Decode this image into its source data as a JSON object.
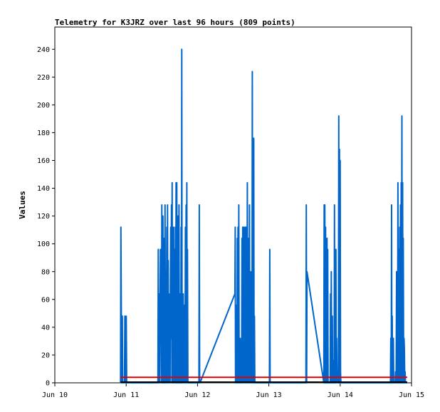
{
  "chart_data": {
    "type": "line",
    "title": "Telemetry for K3JRZ over last 96 hours (809 points)",
    "xlabel": "",
    "ylabel": "Values",
    "x_tick_labels": [
      "Jun 10",
      "Jun 11",
      "Jun 12",
      "Jun 13",
      "Jun 14",
      "Jun 15"
    ],
    "y_ticks": [
      0,
      20,
      40,
      60,
      80,
      100,
      120,
      140,
      160,
      180,
      200,
      220,
      240
    ],
    "xlim": [
      "Jun 10",
      "Jun 15"
    ],
    "ylim": [
      0,
      256
    ],
    "grid": false,
    "legend": "none",
    "series": [
      {
        "color": "#0066cc",
        "x": [
          "Jun 10 22:06",
          "Jun 10 22:14",
          "Jun 10 22:29",
          "Jun 10 22:36",
          "Jun 10 22:43",
          "Jun 10 22:50",
          "Jun 10 22:58",
          "Jun 10 23:05",
          "Jun 10 23:26",
          "Jun 10 23:34",
          "Jun 10 23:48",
          "Jun 10 23:55",
          "Jun 11 00:02",
          "Jun 11 00:10",
          "Jun 11 00:17",
          "Jun 11 00:24",
          "Jun 11 00:31",
          "Jun 11 00:38",
          "Jun 11 10:34",
          "Jun 11 10:41",
          "Jun 11 10:48",
          "Jun 11 10:55",
          "Jun 11 11:02",
          "Jun 11 11:10",
          "Jun 11 11:17",
          "Jun 11 11:24",
          "Jun 11 11:31",
          "Jun 11 11:38",
          "Jun 11 11:46",
          "Jun 11 11:53",
          "Jun 11 12:00",
          "Jun 11 12:07",
          "Jun 11 12:14",
          "Jun 11 12:22",
          "Jun 11 12:29",
          "Jun 11 12:36",
          "Jun 11 12:43",
          "Jun 11 12:50",
          "Jun 11 12:58",
          "Jun 11 13:05",
          "Jun 11 13:12",
          "Jun 11 13:19",
          "Jun 11 13:26",
          "Jun 11 13:34",
          "Jun 11 13:41",
          "Jun 11 13:48",
          "Jun 11 13:55",
          "Jun 11 14:02",
          "Jun 11 14:10",
          "Jun 11 14:17",
          "Jun 11 14:24",
          "Jun 11 14:31",
          "Jun 11 14:38",
          "Jun 11 14:46",
          "Jun 11 14:53",
          "Jun 11 15:00",
          "Jun 11 15:07",
          "Jun 11 15:14",
          "Jun 11 15:22",
          "Jun 11 15:29",
          "Jun 11 15:36",
          "Jun 11 15:43",
          "Jun 11 15:50",
          "Jun 11 15:58",
          "Jun 11 16:05",
          "Jun 11 16:12",
          "Jun 11 16:19",
          "Jun 11 16:26",
          "Jun 11 16:34",
          "Jun 11 16:41",
          "Jun 11 16:48",
          "Jun 11 16:55",
          "Jun 11 17:02",
          "Jun 11 17:10",
          "Jun 11 17:17",
          "Jun 11 17:24",
          "Jun 11 17:31",
          "Jun 11 17:38",
          "Jun 11 17:46",
          "Jun 11 17:53",
          "Jun 11 18:00",
          "Jun 11 18:07",
          "Jun 11 18:14",
          "Jun 11 18:22",
          "Jun 11 18:29",
          "Jun 11 18:36",
          "Jun 11 18:43",
          "Jun 11 18:50",
          "Jun 11 18:58",
          "Jun 11 19:05",
          "Jun 11 19:12",
          "Jun 11 19:19",
          "Jun 11 19:26",
          "Jun 11 19:34",
          "Jun 11 19:41",
          "Jun 11 19:48",
          "Jun 11 19:55",
          "Jun 11 20:02",
          "Jun 11 20:10",
          "Jun 11 20:17",
          "Jun 11 20:24",
          "Jun 11 20:31",
          "Jun 11 20:38",
          "Jun 11 20:46",
          "Jun 11 20:53",
          "Jun 11 21:00",
          "Jun 11 21:07",
          "Jun 11 21:14",
          "Jun 11 21:22",
          "Jun 11 21:29",
          "Jun 11 21:36",
          "Jun 11 21:43",
          "Jun 11 21:50",
          "Jun 11 21:58",
          "Jun 11 22:05",
          "Jun 11 22:12",
          "Jun 11 22:19",
          "Jun 11 22:26",
          "Jun 11 22:34",
          "Jun 11 22:41",
          "Jun 11 22:48",
          "Jun 11 22:55",
          "Jun 11 23:02",
          "Jun 11 23:10",
          "Jun 11 23:17",
          "Jun 11 23:24",
          "Jun 11 23:31",
          "Jun 11 23:38",
          "Jun 11 23:46",
          "Jun 11 23:53",
          "Jun 12 00:00",
          "Jun 12 00:07",
          "Jun 12 00:14",
          "Jun 12 00:22",
          "Jun 12 00:29",
          "Jun 12 00:36",
          "Jun 12 00:43",
          "Jun 12 00:50",
          "Jun 12 12:34",
          "Jun 12 12:41",
          "Jun 12 12:48",
          "Jun 12 12:55",
          "Jun 12 13:02",
          "Jun 12 13:10",
          "Jun 12 13:17",
          "Jun 12 13:24",
          "Jun 12 13:31",
          "Jun 12 13:38",
          "Jun 12 13:46",
          "Jun 12 13:53",
          "Jun 12 14:00",
          "Jun 12 14:07",
          "Jun 12 14:14",
          "Jun 12 14:22",
          "Jun 12 14:29",
          "Jun 12 14:36",
          "Jun 12 14:43",
          "Jun 12 14:50",
          "Jun 12 14:58",
          "Jun 12 15:05",
          "Jun 12 15:12",
          "Jun 12 15:19",
          "Jun 12 15:26",
          "Jun 12 15:34",
          "Jun 12 15:41",
          "Jun 12 15:48",
          "Jun 12 15:55",
          "Jun 12 16:02",
          "Jun 12 16:10",
          "Jun 12 16:17",
          "Jun 12 16:24",
          "Jun 12 16:31",
          "Jun 12 16:38",
          "Jun 12 16:46",
          "Jun 12 16:53",
          "Jun 12 17:00",
          "Jun 12 17:07",
          "Jun 12 17:14",
          "Jun 12 17:22",
          "Jun 12 17:29",
          "Jun 12 17:36",
          "Jun 12 17:43",
          "Jun 12 17:50",
          "Jun 12 17:58",
          "Jun 12 18:05",
          "Jun 12 18:12",
          "Jun 12 18:19",
          "Jun 12 18:26",
          "Jun 12 18:34",
          "Jun 12 18:41",
          "Jun 12 18:48",
          "Jun 12 18:55",
          "Jun 12 19:02",
          "Jun 12 19:10",
          "Jun 12 19:17",
          "Jun 12 19:24",
          "Jun 12 19:31",
          "Jun 12 19:38",
          "Jun 12 19:46",
          "Jun 12 19:53",
          "Jun 12 20:00",
          "Jun 12 20:07",
          "Jun 12 20:14",
          "Jun 12 20:22",
          "Jun 12 20:29",
          "Jun 12 20:36",
          "Jun 12 20:43",
          "Jun 12 20:50",
          "Jun 12 20:58",
          "Jun 12 21:05",
          "Jun 12 21:12",
          "Jun 12 21:19",
          "Jun 12 21:26",
          "Jun 12 21:34",
          "Jun 12 21:41",
          "Jun 12 21:48",
          "Jun 12 21:55",
          "Jun 12 22:02",
          "Jun 12 22:10",
          "Jun 12 22:17",
          "Jun 12 22:24",
          "Jun 12 22:31",
          "Jun 12 22:38",
          "Jun 12 22:46",
          "Jun 12 22:53",
          "Jun 12 23:00",
          "Jun 12 23:07",
          "Jun 12 23:14",
          "Jun 12 23:22",
          "Jun 12 23:29",
          "Jun 12 23:36",
          "Jun 12 23:43",
          "Jun 12 23:50",
          "Jun 12 23:58",
          "Jun 13 00:05",
          "Jun 13 00:12",
          "Jun 13 00:19",
          "Jun 13 00:26",
          "Jun 13 00:34",
          "Jun 13 11:02",
          "Jun 13 11:10",
          "Jun 13 11:17",
          "Jun 13 11:24",
          "Jun 13 11:31",
          "Jun 13 11:38",
          "Jun 13 11:46",
          "Jun 13 11:53",
          "Jun 13 12:00",
          "Jun 13 12:07",
          "Jun 13 12:14",
          "Jun 13 12:22",
          "Jun 13 12:29",
          "Jun 13 12:36",
          "Jun 13 12:43",
          "Jun 13 12:50",
          "Jun 13 18:29",
          "Jun 13 18:36",
          "Jun 13 18:43",
          "Jun 13 18:50",
          "Jun 13 18:58",
          "Jun 13 19:05",
          "Jun 13 19:12",
          "Jun 13 19:19",
          "Jun 13 19:26",
          "Jun 13 19:34",
          "Jun 13 19:41",
          "Jun 13 19:48",
          "Jun 13 19:55",
          "Jun 13 20:02",
          "Jun 13 20:10",
          "Jun 13 20:17",
          "Jun 13 20:24",
          "Jun 13 20:31",
          "Jun 13 20:38",
          "Jun 13 20:46",
          "Jun 13 20:53",
          "Jun 13 21:00",
          "Jun 13 21:07",
          "Jun 13 21:14",
          "Jun 13 21:22",
          "Jun 13 21:29",
          "Jun 13 21:36",
          "Jun 13 21:43",
          "Jun 13 21:50",
          "Jun 13 21:58",
          "Jun 13 22:05",
          "Jun 13 22:12",
          "Jun 13 22:19",
          "Jun 13 22:26",
          "Jun 13 22:34",
          "Jun 13 22:41",
          "Jun 13 22:48",
          "Jun 13 22:55",
          "Jun 13 23:02",
          "Jun 13 23:10",
          "Jun 13 23:17",
          "Jun 13 23:24",
          "Jun 13 23:31",
          "Jun 13 23:38",
          "Jun 13 23:46",
          "Jun 13 23:53",
          "Jun 14 00:00",
          "Jun 14 00:07",
          "Jun 14 00:14",
          "Jun 14 00:22",
          "Jun 14 11:38",
          "Jun 14 11:46",
          "Jun 14 11:53",
          "Jun 14 12:00",
          "Jun 14 12:07",
          "Jun 14 12:14",
          "Jun 14 12:22",
          "Jun 14 12:29",
          "Jun 14 12:36",
          "Jun 14 12:43",
          "Jun 14 12:50",
          "Jun 14 12:58",
          "Jun 14 13:05",
          "Jun 14 13:12",
          "Jun 14 13:19",
          "Jun 14 13:26",
          "Jun 14 13:34",
          "Jun 14 13:41",
          "Jun 14 13:48",
          "Jun 14 13:55",
          "Jun 14 16:41",
          "Jun 14 16:48",
          "Jun 14 16:55",
          "Jun 14 17:02",
          "Jun 14 17:10",
          "Jun 14 17:17",
          "Jun 14 17:24",
          "Jun 14 17:31",
          "Jun 14 17:38",
          "Jun 14 17:46",
          "Jun 14 17:53",
          "Jun 14 18:00",
          "Jun 14 18:07",
          "Jun 14 18:14",
          "Jun 14 18:22",
          "Jun 14 18:29",
          "Jun 14 18:36",
          "Jun 14 18:43",
          "Jun 14 18:50",
          "Jun 14 18:58",
          "Jun 14 19:05",
          "Jun 14 19:12",
          "Jun 14 19:19",
          "Jun 14 19:26",
          "Jun 14 19:34",
          "Jun 14 19:41",
          "Jun 14 19:48",
          "Jun 14 19:55",
          "Jun 14 20:02",
          "Jun 14 20:10",
          "Jun 14 20:17",
          "Jun 14 20:24",
          "Jun 14 20:31",
          "Jun 14 20:38",
          "Jun 14 20:46",
          "Jun 14 20:53",
          "Jun 14 21:00",
          "Jun 14 21:07",
          "Jun 14 21:14",
          "Jun 14 21:22",
          "Jun 14 21:29",
          "Jun 14 21:36",
          "Jun 14 21:43",
          "Jun 14 21:50",
          "Jun 14 21:58",
          "Jun 14 22:05",
          "Jun 14 22:12",
          "Jun 14 22:19",
          "Jun 14 22:26",
          "Jun 14 22:34"
        ],
        "values": [
          0,
          112,
          0,
          32,
          48,
          0,
          0,
          0,
          0,
          48,
          0,
          0,
          48,
          0,
          0,
          0,
          0,
          0,
          0,
          0,
          96,
          0,
          48,
          64,
          0,
          56,
          96,
          32,
          64,
          0,
          128,
          0,
          0,
          120,
          0,
          48,
          0,
          104,
          0,
          128,
          0,
          80,
          0,
          48,
          112,
          0,
          128,
          0,
          88,
          0,
          64,
          48,
          0,
          0,
          72,
          112,
          32,
          128,
          0,
          144,
          0,
          24,
          0,
          112,
          0,
          48,
          96,
          0,
          112,
          0,
          144,
          0,
          144,
          0,
          112,
          0,
          120,
          0,
          128,
          0,
          16,
          0,
          64,
          0,
          112,
          0,
          240,
          0,
          48,
          0,
          64,
          0,
          16,
          0,
          56,
          0,
          112,
          0,
          128,
          0,
          144,
          0,
          96,
          0,
          0,
          0,
          0,
          0,
          0,
          0,
          0,
          0,
          0,
          0,
          0,
          0,
          0,
          0,
          0,
          0,
          0,
          0,
          0,
          0,
          0,
          0,
          0,
          0,
          0,
          0,
          0,
          0,
          0,
          0,
          0,
          128,
          0,
          0,
          64,
          112,
          0,
          48,
          0,
          56,
          0,
          104,
          0,
          112,
          0,
          128,
          0,
          0,
          0,
          32,
          0,
          0,
          16,
          0,
          104,
          0,
          112,
          0,
          96,
          112,
          0,
          48,
          0,
          112,
          0,
          112,
          0,
          96,
          0,
          144,
          0,
          104,
          0,
          64,
          0,
          128,
          0,
          80,
          0,
          56,
          0,
          80,
          0,
          224,
          0,
          128,
          0,
          176,
          0,
          48,
          0,
          0,
          0,
          0,
          0,
          0,
          0,
          0,
          0,
          0,
          0,
          0,
          0,
          0,
          0,
          0,
          0,
          0,
          0,
          0,
          0,
          0,
          0,
          0,
          0,
          0,
          0,
          0,
          0,
          0,
          0,
          0,
          0,
          0,
          0,
          0,
          0,
          0,
          0,
          0,
          0,
          0,
          96,
          0,
          0,
          0,
          0,
          0,
          0,
          0,
          0,
          0,
          0,
          0,
          0,
          0,
          0,
          0,
          128,
          0,
          80,
          0,
          128,
          0,
          128,
          0,
          112,
          0,
          64,
          0,
          104,
          0,
          96,
          0,
          0,
          0,
          0,
          0,
          0,
          0,
          64,
          0,
          80,
          16,
          0,
          48,
          0,
          16,
          0,
          8,
          0,
          128,
          0,
          48,
          0,
          96,
          0,
          32,
          8,
          0,
          0,
          0,
          0,
          192,
          0,
          168,
          0,
          160,
          8,
          0,
          0,
          0,
          0,
          0,
          0,
          0,
          0,
          0,
          0,
          0,
          0,
          0,
          0,
          0,
          0,
          0,
          0,
          0,
          0,
          0,
          0,
          0,
          0,
          0,
          32,
          0,
          128,
          0,
          48,
          0,
          0,
          32,
          0,
          0,
          0,
          0,
          0,
          8,
          0,
          0,
          80,
          0,
          48,
          0,
          144,
          0,
          0,
          96,
          0,
          112,
          0,
          128,
          0,
          144,
          0,
          192,
          0,
          144,
          0,
          104,
          0,
          32,
          24,
          0,
          8,
          0,
          0,
          0,
          0,
          0,
          0
        ]
      },
      {
        "color": "#e00000",
        "x": [
          "Jun 10 22:06",
          "Jun 14 22:34"
        ],
        "values": [
          4,
          4
        ]
      },
      {
        "color": "#000000",
        "x": [
          "Jun 10 22:06",
          "Jun 14 22:34"
        ],
        "values": [
          0.5,
          0.5
        ]
      }
    ]
  }
}
